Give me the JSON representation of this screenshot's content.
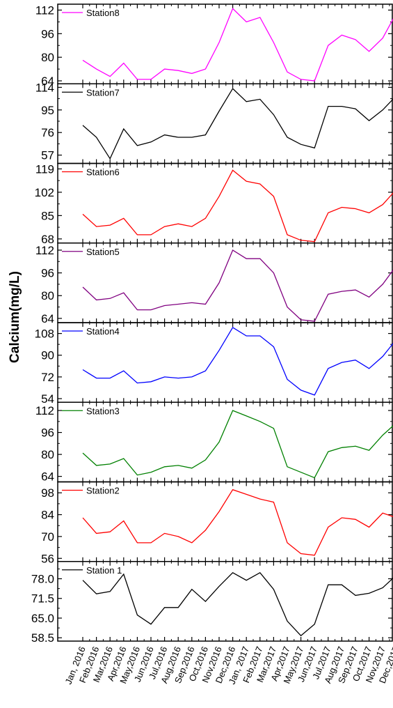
{
  "chart_data": {
    "type": "line",
    "ylabel": "Calcium(mg/L)",
    "categories": [
      "Jan, 2016",
      "Feb,2016",
      "Mar,2016",
      "Apr,2016",
      "May,2016",
      "Jun,2016",
      "Jul,2016",
      "Aug,2016",
      "Sep,2016",
      "Oct,2016",
      "Nov,2016",
      "Dec,2016",
      "Jan, 2017",
      "Feb,2017",
      "Mar,2017",
      "Apr,2017",
      "May,2017",
      "Jun,2017",
      "Jul,2017",
      "Aug,2017",
      "Sep,2017",
      "Oct,2017",
      "Nov,2017",
      "Dec,2017"
    ],
    "extra_tick_labels": [
      "-",
      "-"
    ],
    "panels": [
      {
        "name": "Station8",
        "color": "#ff00ff",
        "yticks": [
          64,
          80,
          96,
          112
        ],
        "ylim": [
          62,
          116
        ],
        "values": [
          78,
          72,
          67,
          76,
          65,
          65,
          72,
          71,
          69,
          72,
          90,
          113,
          104,
          107,
          90,
          70,
          65,
          64,
          88,
          95,
          92,
          84,
          93,
          110
        ]
      },
      {
        "name": "Station7",
        "color": "#000000",
        "yticks": [
          57,
          76,
          95,
          114
        ],
        "ylim": [
          50,
          117
        ],
        "values": [
          82,
          72,
          54,
          79,
          65,
          68,
          74,
          72,
          72,
          74,
          94,
          113,
          102,
          104,
          91,
          72,
          66,
          63,
          98,
          98,
          96,
          86,
          95,
          107
        ]
      },
      {
        "name": "Station6",
        "color": "#ff0000",
        "yticks": [
          68,
          85,
          102,
          119
        ],
        "ylim": [
          65,
          123
        ],
        "values": [
          86,
          77,
          78,
          83,
          71,
          71,
          77,
          79,
          77,
          83,
          99,
          118,
          110,
          108,
          99,
          71,
          67,
          66,
          87,
          91,
          90,
          87,
          93,
          104
        ]
      },
      {
        "name": "Station5",
        "color": "#800080",
        "yticks": [
          64,
          80,
          96,
          112
        ],
        "ylim": [
          61,
          117
        ],
        "values": [
          86,
          77,
          78,
          82,
          70,
          70,
          73,
          74,
          75,
          74,
          89,
          112,
          106,
          106,
          96,
          72,
          63,
          62,
          81,
          83,
          84,
          79,
          88,
          101
        ]
      },
      {
        "name": "Station4",
        "color": "#0000ff",
        "yticks": [
          54,
          72,
          90,
          108
        ],
        "ylim": [
          51,
          117
        ],
        "values": [
          78,
          71,
          71,
          77,
          67,
          68,
          72,
          71,
          72,
          77,
          94,
          113,
          106,
          106,
          97,
          70,
          61,
          57,
          79,
          84,
          86,
          79,
          89,
          103
        ]
      },
      {
        "name": "Station3",
        "color": "#008000",
        "yticks": [
          64,
          80,
          96,
          112
        ],
        "ylim": [
          60,
          118
        ],
        "values": [
          81,
          72,
          73,
          77,
          65,
          67,
          71,
          72,
          70,
          76,
          89,
          112,
          108,
          104,
          99,
          71,
          67,
          63,
          82,
          85,
          86,
          83,
          94,
          103
        ]
      },
      {
        "name": "Station2",
        "color": "#ff0000",
        "yticks": [
          56,
          70,
          84,
          98
        ],
        "ylim": [
          54,
          105
        ],
        "values": [
          82,
          72,
          73,
          80,
          66,
          66,
          72,
          70,
          66,
          74,
          86,
          100,
          97,
          94,
          92,
          66,
          59,
          58,
          76,
          82,
          81,
          76,
          85,
          82
        ]
      },
      {
        "name": "Station 1",
        "color": "#000000",
        "yticks": [
          58.5,
          65.0,
          71.5,
          78.0
        ],
        "ylim": [
          57.4,
          83.7
        ],
        "tick_decimals": 1,
        "values": [
          77.5,
          73.0,
          73.8,
          79.5,
          66.0,
          63.0,
          68.5,
          68.5,
          74.5,
          70.5,
          75.5,
          80.0,
          77.5,
          80.0,
          74.5,
          64.0,
          59.2,
          63.0,
          76.0,
          76.0,
          72.5,
          73.2,
          75.0,
          79.2
        ]
      }
    ]
  }
}
